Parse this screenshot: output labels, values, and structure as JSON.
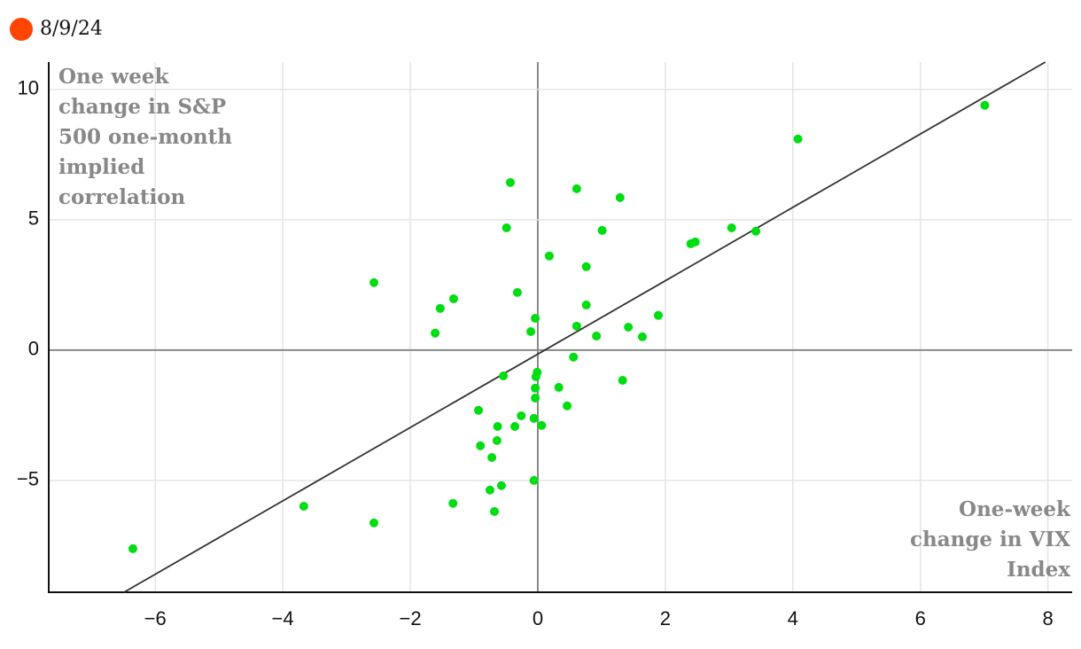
{
  "chart_data": {
    "type": "scatter",
    "legend": {
      "label": "8/9/24",
      "color": "#ff4500"
    },
    "y_label_lines": [
      "One week",
      "change in S&P",
      "500 one-month",
      "implied",
      "correlation"
    ],
    "x_label_lines": [
      "One-week",
      "change in VIX",
      "Index"
    ],
    "xlim": [
      -7.67,
      8.38
    ],
    "ylim": [
      -9.29,
      11.05
    ],
    "xticks": [
      {
        "value": -6,
        "label": "−6"
      },
      {
        "value": -4,
        "label": "−4"
      },
      {
        "value": -2,
        "label": "−2"
      },
      0,
      2,
      4,
      6,
      8
    ],
    "yticks": [
      10,
      5,
      0,
      {
        "value": -5,
        "label": "−5"
      }
    ],
    "grid": true,
    "trendline": {
      "x": [
        -6.49,
        7.96
      ],
      "y": [
        -9.29,
        11.05
      ],
      "color": "#333333"
    },
    "series": [
      {
        "color": "#00dd11",
        "x": [
          -6.35,
          -3.67,
          -2.57,
          -2.57,
          -1.61,
          -1.53,
          -1.32,
          -1.33,
          -0.93,
          -0.9,
          -0.75,
          -0.72,
          -0.68,
          -0.64,
          -0.63,
          -0.57,
          -0.54,
          -0.49,
          -0.43,
          -0.36,
          -0.32,
          -0.26,
          -0.11,
          -0.06,
          -0.06,
          -0.04,
          -0.04,
          -0.04,
          -0.03,
          -0.01,
          0.06,
          0.18,
          0.33,
          0.46,
          0.56,
          0.61,
          0.61,
          0.76,
          0.76,
          0.92,
          1.01,
          1.29,
          1.33,
          1.42,
          1.64,
          1.89,
          2.4,
          2.47,
          3.04,
          3.42,
          4.08,
          7.01
        ],
        "values": [
          -7.62,
          -5.99,
          -6.63,
          2.59,
          0.65,
          1.6,
          1.97,
          -5.88,
          -2.31,
          -3.67,
          -5.37,
          -4.12,
          -6.19,
          -3.47,
          -2.93,
          -5.2,
          -0.99,
          4.69,
          6.43,
          -2.93,
          2.21,
          -2.52,
          0.71,
          -2.62,
          -5.0,
          1.22,
          -1.84,
          -1.46,
          -1.02,
          -0.85,
          -2.89,
          3.61,
          -1.43,
          -2.14,
          -0.27,
          6.19,
          0.92,
          3.2,
          1.73,
          0.54,
          4.59,
          5.85,
          -1.16,
          0.88,
          0.51,
          1.33,
          4.08,
          4.15,
          4.69,
          4.56,
          8.1,
          9.39
        ]
      }
    ]
  }
}
